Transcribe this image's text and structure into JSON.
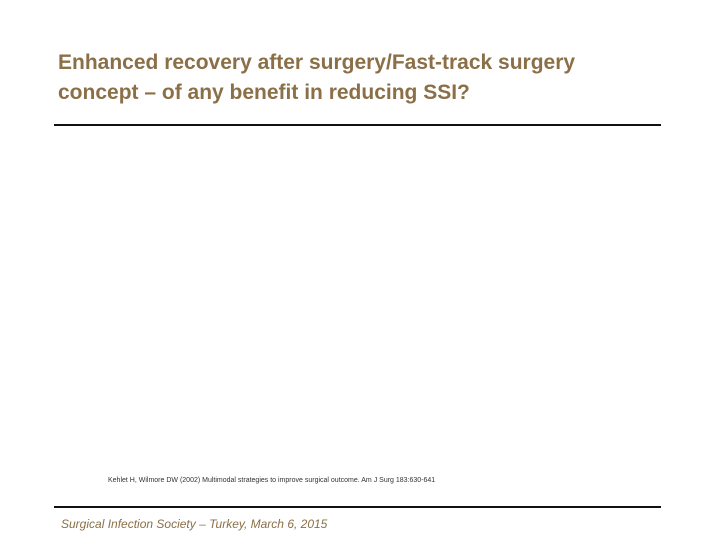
{
  "slide": {
    "title_line_1": "Enhanced recovery after surgery/Fast-track surgery",
    "title_line_2": "concept – of any benefit in reducing SSI?",
    "citation": "Kehlet H, Wilmore DW (2002) Multimodal strategies to improve surgical outcome. Am J Surg 183:630-641",
    "footer": "Surgical Infection Society – Turkey, March 6, 2015"
  },
  "colors": {
    "title": "#8b6f47",
    "footer": "#8b6f47",
    "rules": "#111111"
  }
}
